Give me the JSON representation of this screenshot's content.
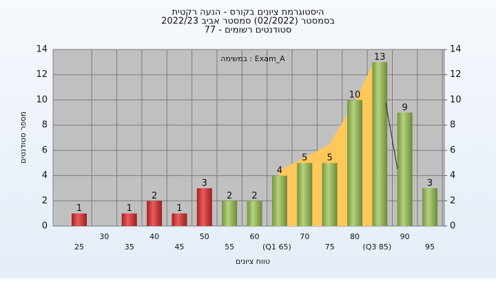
{
  "chart_data": {
    "type": "bar",
    "title": [
      "היסטוגרמת ציונים בקורס - הנעה רקטית",
      "בסמסטר  (02/2022)  סמסטר אביב 2022/23",
      "סטודנטים רשומים - 77"
    ],
    "legend": "במשימה : Exam_A",
    "x_label": "טווח ציונים",
    "y_label": "מספר סטודנטים",
    "categories": [
      "25",
      "30",
      "35",
      "40",
      "45",
      "50",
      "55",
      "60",
      "(Q1 65)",
      "70",
      "75",
      "80",
      "(Q3 85)",
      "90",
      "95"
    ],
    "values": [
      1,
      0,
      1,
      2,
      1,
      3,
      2,
      2,
      4,
      5,
      5,
      10,
      13,
      9,
      3
    ],
    "colors": [
      "#e02828",
      "#e02828",
      "#e02828",
      "#e02828",
      "#e02828",
      "#e02828",
      "#9cc452",
      "#9cc452",
      "#9cc452",
      "#9cc452",
      "#9cc452",
      "#9cc452",
      "#9cc452",
      "#9cc452",
      "#9cc452"
    ],
    "ylim": [
      0,
      14
    ],
    "yticks": [
      0,
      2,
      4,
      6,
      8,
      10,
      12,
      14
    ],
    "y2lim": [
      0,
      14
    ],
    "y2ticks": [
      0,
      2,
      4,
      6,
      8,
      10,
      12,
      14
    ],
    "grid": true
  }
}
